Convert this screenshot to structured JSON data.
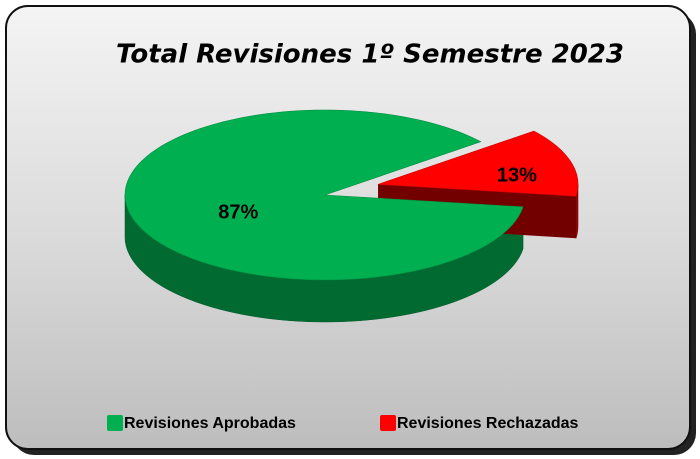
{
  "chart_data": {
    "type": "pie",
    "title": "Total Revisiones 1º Semestre 2023",
    "categories": [
      "Revisiones Aprobadas",
      "Revisiones Rechazadas"
    ],
    "values": [
      87,
      13
    ],
    "value_labels": [
      "87%",
      "13%"
    ],
    "colors": [
      "#00b050",
      "#ff0000"
    ],
    "legend": "bottom"
  }
}
